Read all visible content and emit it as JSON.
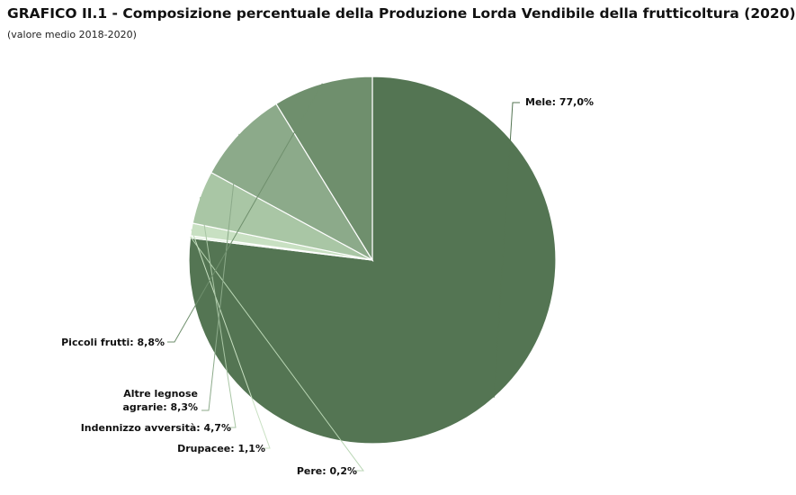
{
  "header": {
    "title": "GRAFICO II.1 - Composizione percentuale della Produzione Lorda Vendibile della frutticoltura (2020)",
    "subtitle": "(valore medio 2018-2020)"
  },
  "chart_data": {
    "type": "pie",
    "title": "GRAFICO II.1 - Composizione percentuale della Produzione Lorda Vendibile della frutticoltura (2020)",
    "subtitle": "(valore medio 2018-2020)",
    "slices": [
      {
        "label": "Mele",
        "value": 77.0,
        "text": "Mele: 77,0%",
        "color": "#547553"
      },
      {
        "label": "Pere",
        "value": 0.2,
        "text": "Pere: 0,2%",
        "color": "#e3f3df"
      },
      {
        "label": "Drupacee",
        "value": 1.1,
        "text": "Drupacee: 1,1%",
        "color": "#c8e0c2"
      },
      {
        "label": "Indennizzo avversità",
        "value": 4.7,
        "text": "Indennizzo avversità: 4,7%",
        "color": "#a9c6a5"
      },
      {
        "label": "Altre legnose agrarie",
        "value": 8.3,
        "text_lines": [
          "Altre legnose",
          "agrarie: 8,3%"
        ],
        "color": "#8caa8a"
      },
      {
        "label": "Piccoli frutti",
        "value": 8.8,
        "text": "Piccoli frutti: 8,8%",
        "color": "#6f8f6d"
      }
    ]
  }
}
